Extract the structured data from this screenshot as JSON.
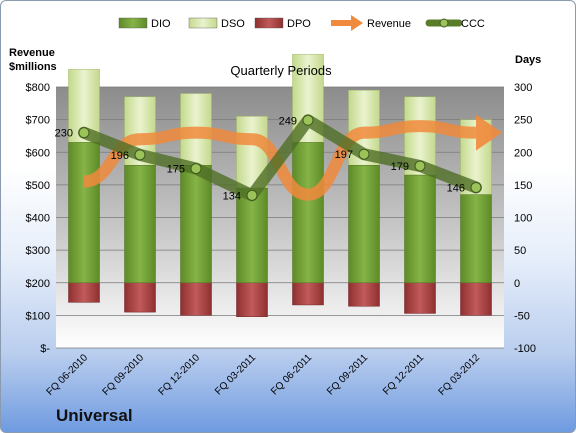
{
  "company": "Universal",
  "chart_data": {
    "type": "bar",
    "title": "Quarterly Periods",
    "left_axis_title": "Revenue\n$millions",
    "right_axis_title": "Days",
    "left_ticks": [
      "$800",
      "$700",
      "$600",
      "$500",
      "$400",
      "$300",
      "$200",
      "$100",
      "$-"
    ],
    "right_ticks": [
      "300",
      "250",
      "200",
      "150",
      "100",
      "50",
      "0",
      "-50",
      "-100"
    ],
    "ylim_left": [
      0,
      800
    ],
    "ylim_right": [
      -100,
      300
    ],
    "categories": [
      "FQ 06-2010",
      "FQ 09-2010",
      "FQ 12-2010",
      "FQ 03-2011",
      "FQ 06-2011",
      "FQ 09-2011",
      "FQ 12-2011",
      "FQ 03-2012"
    ],
    "legend": [
      {
        "name": "DIO",
        "kind": "bar",
        "color": "#77a23a"
      },
      {
        "name": "DSO",
        "kind": "bar",
        "color": "#d6e6a8"
      },
      {
        "name": "DPO",
        "kind": "bar",
        "color": "#b04848"
      },
      {
        "name": "Revenue",
        "kind": "arrow",
        "color": "#f08a3c"
      },
      {
        "name": "CCC",
        "kind": "line",
        "color": "#5a7d2a"
      }
    ],
    "series": {
      "DIO": [
        215,
        180,
        180,
        145,
        215,
        180,
        165,
        135
      ],
      "DSO": [
        112,
        105,
        110,
        110,
        135,
        115,
        120,
        115
      ],
      "DPO": [
        -30,
        -45,
        -50,
        -52,
        -34,
        -36,
        -47,
        -50
      ],
      "CCC": [
        230,
        196,
        175,
        134,
        249,
        197,
        179,
        146
      ],
      "Revenue": [
        510,
        640,
        660,
        640,
        470,
        660,
        680,
        660
      ]
    },
    "ccc_labels": [
      "230",
      "196",
      "175",
      "134",
      "249",
      "197",
      "179",
      "146"
    ]
  }
}
